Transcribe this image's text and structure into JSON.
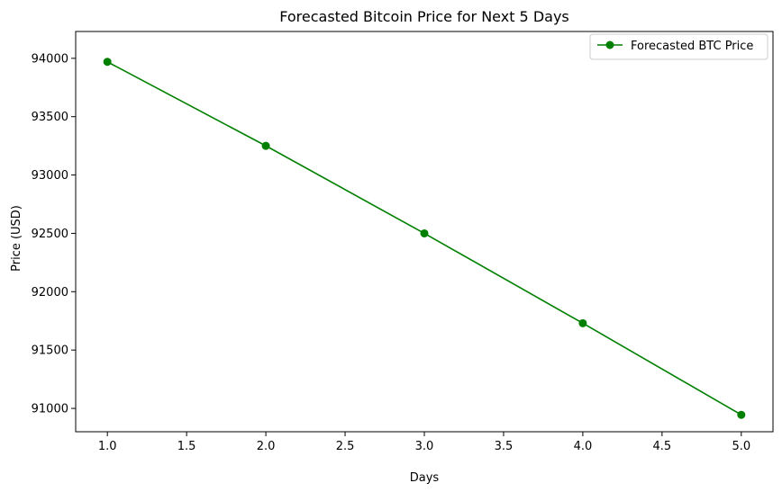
{
  "chart_data": {
    "type": "line",
    "title": "Forecasted Bitcoin Price for Next 5 Days",
    "xlabel": "Days",
    "ylabel": "Price (USD)",
    "xlim": [
      0.8,
      5.2
    ],
    "ylim": [
      90800,
      94230
    ],
    "xticks": [
      1.0,
      1.5,
      2.0,
      2.5,
      3.0,
      3.5,
      4.0,
      4.5,
      5.0
    ],
    "xtick_labels": [
      "1.0",
      "1.5",
      "2.0",
      "2.5",
      "3.0",
      "3.5",
      "4.0",
      "4.5",
      "5.0"
    ],
    "yticks": [
      91000,
      91500,
      92000,
      92500,
      93000,
      93500,
      94000
    ],
    "ytick_labels": [
      "91000",
      "91500",
      "92000",
      "92500",
      "93000",
      "93500",
      "94000"
    ],
    "grid": false,
    "legend_position": "top-right",
    "series": [
      {
        "name": "Forecasted BTC Price",
        "color": "#008000",
        "marker": "circle",
        "x": [
          1,
          2,
          3,
          4,
          5
        ],
        "y": [
          93970,
          93250,
          92500,
          91730,
          90945
        ]
      }
    ]
  }
}
